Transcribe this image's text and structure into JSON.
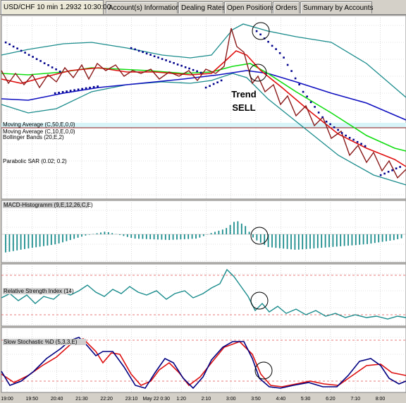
{
  "tabs": [
    {
      "label": "USD/CHF 10 min 1.2932 10:30:00",
      "active": true
    },
    {
      "label": "Account(s) Information",
      "active": false
    },
    {
      "label": "Dealing Rates",
      "active": false
    },
    {
      "label": "Open Positions",
      "active": false
    },
    {
      "label": "Orders",
      "active": false
    },
    {
      "label": "Summary by Accounts",
      "active": false
    }
  ],
  "indicators": {
    "ma50": "Moving Average (C,50,E,0,0)",
    "ma10": "Moving Average (C,10,E,0,0)",
    "bollinger": "Bollinger Bands (20,E,2)",
    "sar": "Parabolic SAR (0.02; 0.2)",
    "macd": "MACD-Histogramm (9,E,12,26,C,E)",
    "rsi": "Relative Strength Index (14)",
    "stoch": "Slow Stochastic %D (5,3,3,E)"
  },
  "annotation": {
    "line1": "Trend",
    "line2": "SELL"
  },
  "x_ticks": [
    "19:00",
    "19:50",
    "20:40",
    "21:30",
    "22:20",
    "23:10",
    "May 22 0:30",
    "1:20",
    "2:10",
    "3:00",
    "3:50",
    "4:40",
    "5:30",
    "6:20",
    "7:10",
    "8:00"
  ],
  "colors": {
    "price": "#8b1a1a",
    "ma10": "#e01010",
    "ma50": "#1010c0",
    "ma_green": "#10dd10",
    "bollinger": "#1a8c8c",
    "sar": "#00008b",
    "macd": "#1a8c8c",
    "rsi": "#1a8c8c",
    "stoch_k": "#000080",
    "stoch_d": "#dd1010",
    "circle": "#000000"
  }
}
